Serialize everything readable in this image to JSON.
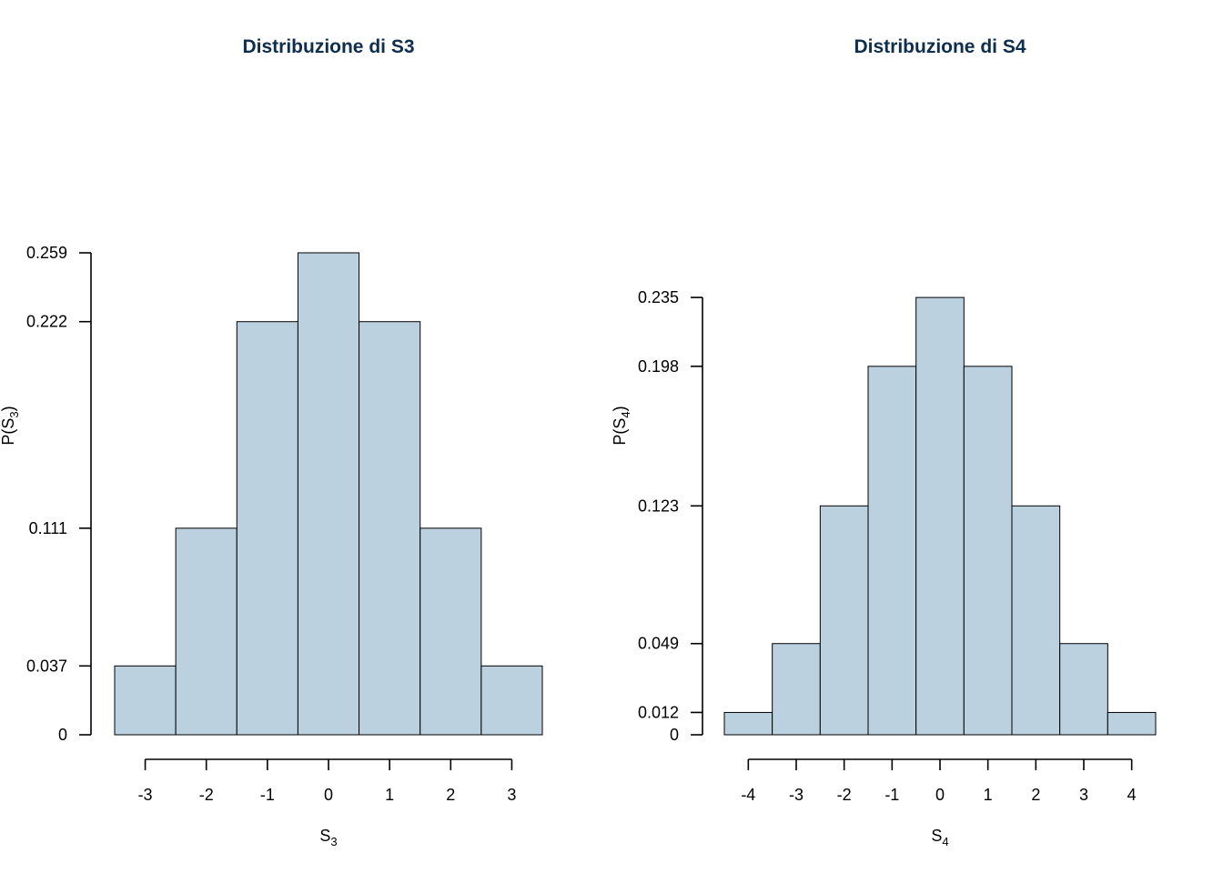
{
  "chart_data": [
    {
      "type": "bar",
      "title": "Distribuzione di S3",
      "xlabel": {
        "base": "S",
        "sub": "3"
      },
      "ylabel": {
        "prefix": "P(S",
        "sub": "3",
        "suffix": ")"
      },
      "x": [
        -3,
        -2,
        -1,
        0,
        1,
        2,
        3
      ],
      "values": [
        0.037,
        0.111,
        0.222,
        0.259,
        0.222,
        0.111,
        0.037
      ],
      "yticks": [
        0,
        0.037,
        0.111,
        0.222,
        0.259
      ],
      "ytick_labels": [
        "0",
        "0.037",
        "0.111",
        "0.222",
        "0.259"
      ],
      "xticks": [
        -3,
        -2,
        -1,
        0,
        1,
        2,
        3
      ],
      "xtick_labels": [
        "-3",
        "-2",
        "-1",
        "0",
        "1",
        "2",
        "3"
      ],
      "xlim": [
        -3.5,
        3.5
      ],
      "ylim": [
        0,
        0.259
      ],
      "bar_color": "#bbd1df",
      "grid": false
    },
    {
      "type": "bar",
      "title": "Distribuzione di S4",
      "xlabel": {
        "base": "S",
        "sub": "4"
      },
      "ylabel": {
        "prefix": "P(S",
        "sub": "4",
        "suffix": ")"
      },
      "x": [
        -4,
        -3,
        -2,
        -1,
        0,
        1,
        2,
        3,
        4
      ],
      "values": [
        0.012,
        0.049,
        0.123,
        0.198,
        0.235,
        0.198,
        0.123,
        0.049,
        0.012
      ],
      "yticks": [
        0,
        0.012,
        0.049,
        0.123,
        0.198,
        0.235
      ],
      "ytick_labels": [
        "0",
        "0.012",
        "0.049",
        "0.123",
        "0.198",
        "0.235"
      ],
      "xticks": [
        -4,
        -3,
        -2,
        -1,
        0,
        1,
        2,
        3,
        4
      ],
      "xtick_labels": [
        "-4",
        "-3",
        "-2",
        "-1",
        "0",
        "1",
        "2",
        "3",
        "4"
      ],
      "xlim": [
        -4.5,
        4.5
      ],
      "ylim": [
        0,
        0.259
      ],
      "bar_color": "#bbd1df",
      "grid": false
    }
  ]
}
